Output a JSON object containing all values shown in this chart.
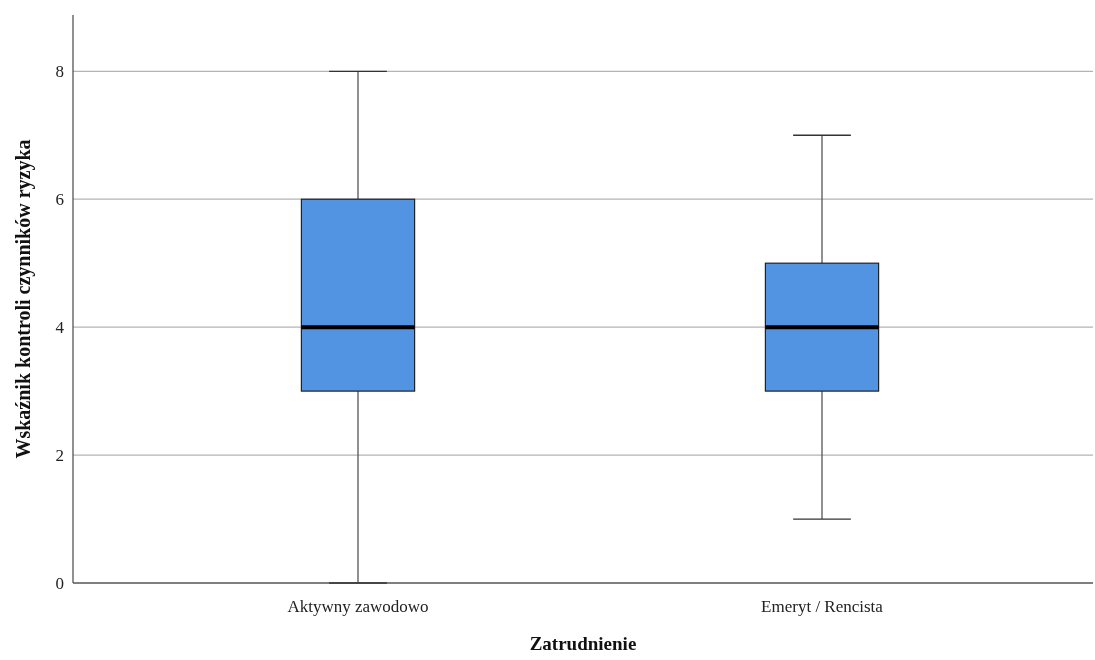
{
  "chart_data": {
    "type": "box",
    "xlabel": "Zatrudnienie",
    "ylabel": "Wskaźnik kontroli czynników ryzyka",
    "categories": [
      "Aktywny zawodowo",
      "Emeryt / Rencista"
    ],
    "boxes": [
      {
        "low": 0,
        "q1": 3,
        "median": 4,
        "q3": 6,
        "high": 8
      },
      {
        "low": 1,
        "q1": 3,
        "median": 4,
        "q3": 5,
        "high": 7
      }
    ],
    "color": "#5294e2",
    "ylim": [
      0,
      8.88
    ],
    "yticks": [
      0,
      2,
      4,
      6,
      8
    ],
    "grid": "y"
  }
}
